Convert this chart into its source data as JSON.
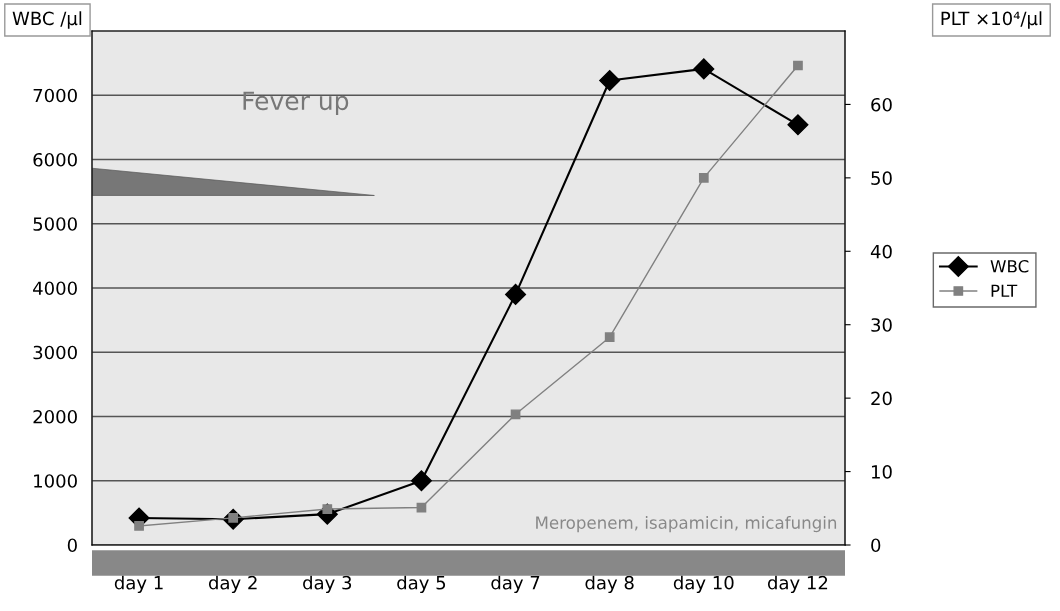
{
  "chart_data": {
    "type": "line",
    "categories": [
      "day 1",
      "day 2",
      "day 3",
      "day 5",
      "day 7",
      "day 8",
      "day 10",
      "day 12"
    ],
    "series": [
      {
        "name": "WBC",
        "color": "#000000",
        "marker": "diamond",
        "values": [
          420,
          400,
          480,
          1000,
          3900,
          7230,
          7410,
          6540
        ]
      },
      {
        "name": "PLT",
        "color": "#808080",
        "marker": "square",
        "axis": "y2",
        "values": [
          2.6,
          3.7,
          4.9,
          5.1,
          17.8,
          28.3,
          50,
          65.3
        ]
      }
    ],
    "ylabel": "WBC /μl",
    "y2label": "PLT ×10⁴/μl",
    "ylim": [
      0,
      8000
    ],
    "yticks": [
      0,
      1000,
      2000,
      3000,
      4000,
      5000,
      6000,
      7000
    ],
    "y2lim": [
      0,
      70
    ],
    "y2ticks": [
      0,
      10,
      20,
      30,
      40,
      50,
      60
    ],
    "annotations": [
      "Fever up",
      "Meropenem, isapamicin, micafungin"
    ],
    "grid": "y",
    "legend": "right",
    "line_style": "solid"
  }
}
